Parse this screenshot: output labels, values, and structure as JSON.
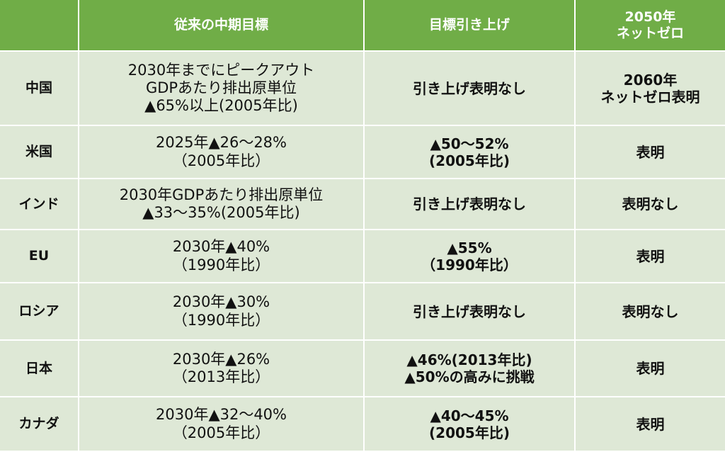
{
  "header": {
    "country": "",
    "previous_target": "従来の中期目標",
    "raised_target": "目標引き上げ",
    "netzero": [
      "2050年",
      "ネットゼロ"
    ]
  },
  "rows": [
    {
      "country": "中国",
      "previous": [
        "2030年までにピークアウト",
        "GDPあたり排出原単位",
        "▲65%以上(2005年比)"
      ],
      "raised": [
        "引き上げ表明なし"
      ],
      "netzero": [
        "2060年",
        "ネットゼロ表明"
      ]
    },
    {
      "country": "米国",
      "previous": [
        "2025年▲26～28%",
        "（2005年比）"
      ],
      "raised": [
        "▲50～52%",
        "(2005年比)"
      ],
      "netzero": [
        "表明"
      ]
    },
    {
      "country": "インド",
      "previous": [
        "2030年GDPあたり排出原単位",
        "▲33～35%(2005年比)"
      ],
      "raised": [
        "引き上げ表明なし"
      ],
      "netzero": [
        "表明なし"
      ]
    },
    {
      "country": "EU",
      "previous": [
        "2030年▲40%",
        "（1990年比）"
      ],
      "raised": [
        "▲55%",
        "（1990年比）"
      ],
      "netzero": [
        "表明"
      ]
    },
    {
      "country": "ロシア",
      "previous": [
        "2030年▲30%",
        "（1990年比）"
      ],
      "raised": [
        "引き上げ表明なし"
      ],
      "netzero": [
        "表明なし"
      ]
    },
    {
      "country": "日本",
      "previous": [
        "2030年▲26%",
        "（2013年比）"
      ],
      "raised": [
        "▲46%(2013年比)",
        "▲50%の高みに挑戦"
      ],
      "netzero": [
        "表明"
      ]
    },
    {
      "country": "カナダ",
      "previous": [
        "2030年▲32～40%",
        "（2005年比）"
      ],
      "raised": [
        "▲40～45%",
        "(2005年比)"
      ],
      "netzero": [
        "表明"
      ]
    }
  ]
}
